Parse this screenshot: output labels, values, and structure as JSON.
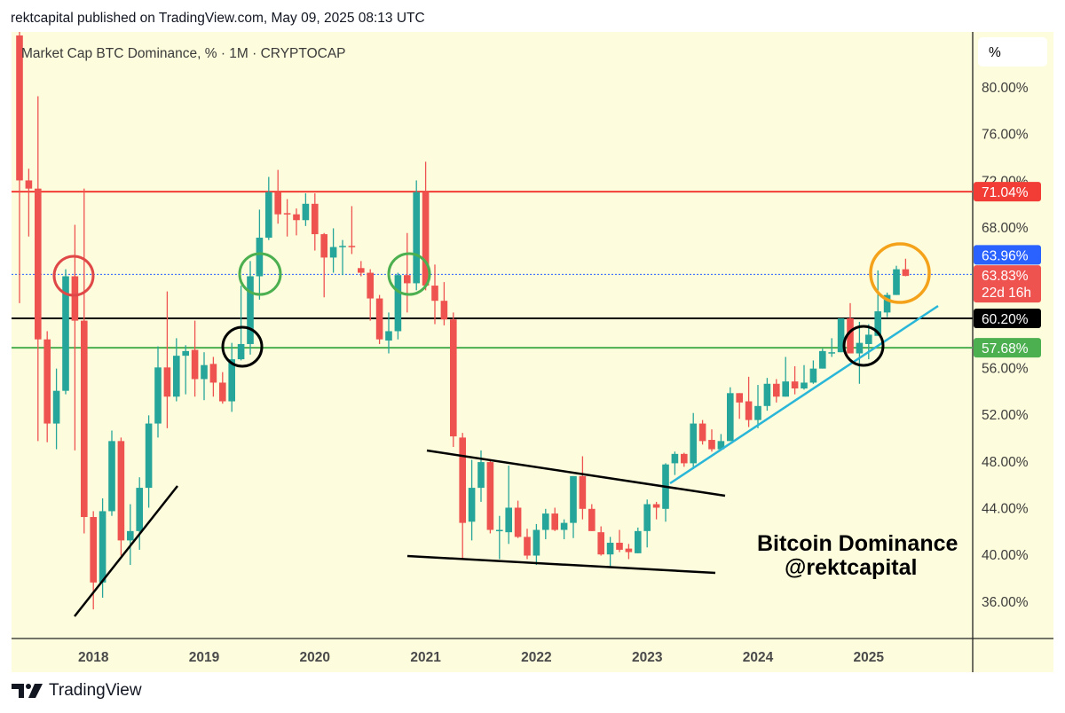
{
  "header": {
    "published": "rektcapital published on TradingView.com, May 09, 2025 08:13 UTC"
  },
  "footer": {
    "brand": "TradingView"
  },
  "chart_data": {
    "type": "candlestick",
    "title": "Market Cap BTC Dominance, % · 1M · CRYPTOCAP",
    "scale_button": "%",
    "ylim": [
      31.8,
      84.8
    ],
    "first_candle": "2017-05",
    "interval": "1M",
    "colors": {
      "up": "#26a69a",
      "down": "#ef5350",
      "background": "#fdfcdc"
    },
    "yticks": [
      {
        "value": 80,
        "label": "80.00%"
      },
      {
        "value": 76,
        "label": "76.00%"
      },
      {
        "value": 72,
        "label": "72.00%"
      },
      {
        "value": 68,
        "label": "68.00%"
      },
      {
        "value": 56,
        "label": "56.00%"
      },
      {
        "value": 52,
        "label": "52.00%"
      },
      {
        "value": 48,
        "label": "48.00%"
      },
      {
        "value": 44,
        "label": "44.00%"
      },
      {
        "value": 40,
        "label": "40.00%"
      },
      {
        "value": 36,
        "label": "36.00%"
      }
    ],
    "xticks": [
      {
        "index": 8,
        "label": "2018"
      },
      {
        "index": 20,
        "label": "2019"
      },
      {
        "index": 32,
        "label": "2020"
      },
      {
        "index": 44,
        "label": "2021"
      },
      {
        "index": 56,
        "label": "2022"
      },
      {
        "index": 68,
        "label": "2023"
      },
      {
        "index": 80,
        "label": "2024"
      },
      {
        "index": 92,
        "label": "2025"
      }
    ],
    "levels": [
      {
        "value": 71.04,
        "label": "71.04%",
        "color": "#f23d36"
      },
      {
        "value": 63.96,
        "label": "63.96%",
        "color": "#2962ff"
      },
      {
        "value": 60.2,
        "label": "60.20%",
        "color": "#000000"
      },
      {
        "value": 57.68,
        "label": "57.68%",
        "color": "#4caf50"
      }
    ],
    "last_price": {
      "value": 63.83,
      "label": "63.83%",
      "countdown": "22d 16h",
      "color": "#ef5350"
    },
    "annotation_text": [
      "Bitcoin Dominance",
      "@rektcapital"
    ],
    "ohlc": [
      [
        84.4,
        84.8,
        61.5,
        72.0
      ],
      [
        72.0,
        73.0,
        67.2,
        71.3
      ],
      [
        71.3,
        79.2,
        49.7,
        58.4
      ],
      [
        58.4,
        59.1,
        49.6,
        51.2
      ],
      [
        51.2,
        55.9,
        49.0,
        54.0
      ],
      [
        54.0,
        64.4,
        53.7,
        63.8
      ],
      [
        63.8,
        68.2,
        48.9,
        60.0
      ],
      [
        60.0,
        71.3,
        41.8,
        43.2
      ],
      [
        43.2,
        43.7,
        35.3,
        37.6
      ],
      [
        37.6,
        44.8,
        36.3,
        43.7
      ],
      [
        43.7,
        50.6,
        43.3,
        49.7
      ],
      [
        49.7,
        50.0,
        39.9,
        41.2
      ],
      [
        41.2,
        44.3,
        39.1,
        42.0
      ],
      [
        42.0,
        46.6,
        40.4,
        45.7
      ],
      [
        45.7,
        51.9,
        44.0,
        51.2
      ],
      [
        51.2,
        57.8,
        50.0,
        56.0
      ],
      [
        56.0,
        62.5,
        50.8,
        53.5
      ],
      [
        53.5,
        58.5,
        53.1,
        57.0
      ],
      [
        57.0,
        57.9,
        53.7,
        57.4
      ],
      [
        57.5,
        60.0,
        53.5,
        55.0
      ],
      [
        55.0,
        57.3,
        53.2,
        56.2
      ],
      [
        56.3,
        56.9,
        53.5,
        54.7
      ],
      [
        54.7,
        55.6,
        52.9,
        53.1
      ],
      [
        53.1,
        58.1,
        52.2,
        56.7
      ],
      [
        56.7,
        63.0,
        56.6,
        58.0
      ],
      [
        58.0,
        65.1,
        57.1,
        63.8
      ],
      [
        63.8,
        69.5,
        61.8,
        67.1
      ],
      [
        67.1,
        72.3,
        66.9,
        71.0
      ],
      [
        71.0,
        72.9,
        68.3,
        69.1
      ],
      [
        69.2,
        70.4,
        67.2,
        69.1
      ],
      [
        69.1,
        69.6,
        67.3,
        68.6
      ],
      [
        68.6,
        70.9,
        68.1,
        70.0
      ],
      [
        70.0,
        70.9,
        66.0,
        67.4
      ],
      [
        67.4,
        67.5,
        62.0,
        65.4
      ],
      [
        65.4,
        67.9,
        64.1,
        66.3
      ],
      [
        66.3,
        66.9,
        63.9,
        66.4
      ],
      [
        66.4,
        69.8,
        65.7,
        66.3
      ],
      [
        64.5,
        65.1,
        63.8,
        64.1
      ],
      [
        64.1,
        64.4,
        60.0,
        61.9
      ],
      [
        61.9,
        62.2,
        58.0,
        58.4
      ],
      [
        58.3,
        60.7,
        57.2,
        59.1
      ],
      [
        59.1,
        64.1,
        58.4,
        63.9
      ],
      [
        63.9,
        67.5,
        60.7,
        63.2
      ],
      [
        63.2,
        72.0,
        62.6,
        71.0
      ],
      [
        71.0,
        73.6,
        62.6,
        63.0
      ],
      [
        63.0,
        64.8,
        59.7,
        61.7
      ],
      [
        61.7,
        63.3,
        59.6,
        60.1
      ],
      [
        60.1,
        60.7,
        49.2,
        50.1
      ],
      [
        50.0,
        50.4,
        39.6,
        42.7
      ],
      [
        42.8,
        48.1,
        41.2,
        45.7
      ],
      [
        45.7,
        48.9,
        44.5,
        47.9
      ],
      [
        47.9,
        48.1,
        41.8,
        42.1
      ],
      [
        42.1,
        43.3,
        39.6,
        42.1
      ],
      [
        41.9,
        47.6,
        40.9,
        44.0
      ],
      [
        44.0,
        44.6,
        41.4,
        41.5
      ],
      [
        41.5,
        42.2,
        39.6,
        39.9
      ],
      [
        39.9,
        42.6,
        39.1,
        42.1
      ],
      [
        42.1,
        43.9,
        41.3,
        43.5
      ],
      [
        43.5,
        44.0,
        42.0,
        42.1
      ],
      [
        42.1,
        43.0,
        41.3,
        42.7
      ],
      [
        42.7,
        46.7,
        41.4,
        46.7
      ],
      [
        46.7,
        48.4,
        43.0,
        43.9
      ],
      [
        43.9,
        44.3,
        42.0,
        42.0
      ],
      [
        41.9,
        42.4,
        39.9,
        40.0
      ],
      [
        40.0,
        41.5,
        38.9,
        41.0
      ],
      [
        41.0,
        42.1,
        40.2,
        40.4
      ],
      [
        40.5,
        40.9,
        39.6,
        40.2
      ],
      [
        40.1,
        42.3,
        40.1,
        42.0
      ],
      [
        42.0,
        44.7,
        40.6,
        44.3
      ],
      [
        44.3,
        44.5,
        43.0,
        44.0
      ],
      [
        43.9,
        47.8,
        42.8,
        47.7
      ],
      [
        47.8,
        48.8,
        46.8,
        48.6
      ],
      [
        48.6,
        48.7,
        47.5,
        47.8
      ],
      [
        47.8,
        52.1,
        47.3,
        51.2
      ],
      [
        51.2,
        51.5,
        49.4,
        49.7
      ],
      [
        49.8,
        50.7,
        48.8,
        49.0
      ],
      [
        49.0,
        50.3,
        49.0,
        49.7
      ],
      [
        49.7,
        54.3,
        49.7,
        53.8
      ],
      [
        53.8,
        53.8,
        51.6,
        53.0
      ],
      [
        53.1,
        55.2,
        50.9,
        51.5
      ],
      [
        51.5,
        54.5,
        50.8,
        52.7
      ],
      [
        52.7,
        55.1,
        52.3,
        54.6
      ],
      [
        54.6,
        55.0,
        53.0,
        53.5
      ],
      [
        53.5,
        56.9,
        53.5,
        54.8
      ],
      [
        54.8,
        56.1,
        53.7,
        54.2
      ],
      [
        54.2,
        56.2,
        54.1,
        54.7
      ],
      [
        54.7,
        56.6,
        54.6,
        55.9
      ],
      [
        55.9,
        57.6,
        55.9,
        57.4
      ],
      [
        57.3,
        58.5,
        56.9,
        57.3
      ],
      [
        57.3,
        60.2,
        57.3,
        60.2
      ],
      [
        60.2,
        61.5,
        57.2,
        57.2
      ],
      [
        57.2,
        59.9,
        54.6,
        58.1
      ],
      [
        58.0,
        59.7,
        56.7,
        58.8
      ],
      [
        58.7,
        64.3,
        58.7,
        60.8
      ],
      [
        60.7,
        62.4,
        60.3,
        62.2
      ],
      [
        62.2,
        64.7,
        62.2,
        64.4
      ],
      [
        64.4,
        65.3,
        63.8,
        63.83
      ]
    ]
  }
}
